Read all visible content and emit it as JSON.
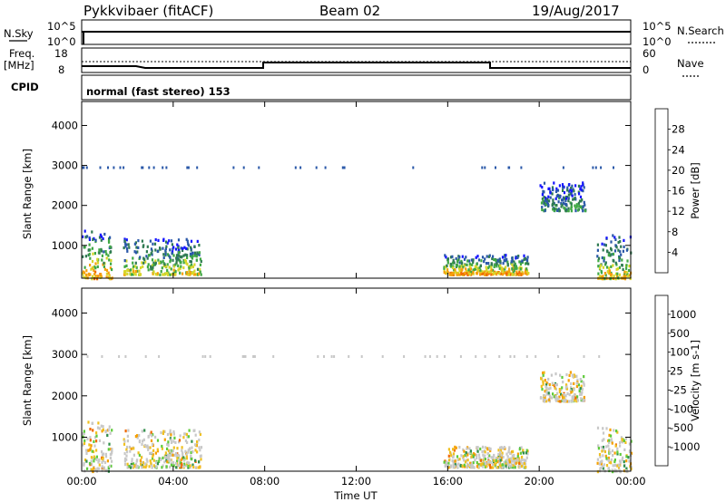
{
  "header": {
    "title": "Pykkvibaer (fitACF)",
    "beam": "Beam 02",
    "date": "19/Aug/2017"
  },
  "status": {
    "nsky_label": "N.Sky",
    "nsky_ticks": [
      "10^5",
      "10^0"
    ],
    "nsearch_label": "N.Search",
    "nsearch_ticks": [
      "10^5",
      "10^0"
    ],
    "freq_label_1": "Freq.",
    "freq_label_2": "[MHz]",
    "freq_ticks": [
      "18",
      "8"
    ],
    "nave_label": "Nave",
    "nave_ticks": [
      "60",
      "0"
    ],
    "cpid_label": "CPID",
    "cpid_text": "normal (fast stereo) 153"
  },
  "chart_data": [
    {
      "type": "heatmap",
      "name": "power-panel",
      "ylabel": "Slant Range [km]",
      "yticks": [
        1000,
        2000,
        3000,
        4000
      ],
      "ylim": [
        180,
        4600
      ],
      "xlim": [
        0,
        24
      ],
      "xticks": [
        "00:00",
        "04:00",
        "08:00",
        "12:00",
        "16:00",
        "20:00",
        "00:00"
      ],
      "xlabel": "Time UT",
      "colorbar": {
        "label": "Power [dB]",
        "ticks": [
          "4",
          "8",
          "12",
          "16",
          "20",
          "24",
          "28"
        ],
        "colors": [
          "#1414ff",
          "#2a58a8",
          "#2f7a52",
          "#3fa844",
          "#d7d72a",
          "#f5a00a",
          "#f06a00",
          "#ff1a00"
        ]
      },
      "regions": [
        {
          "t0": 0.0,
          "t1": 1.3,
          "r0": 200,
          "r1": 1400,
          "level": 5
        },
        {
          "t0": 1.8,
          "t1": 5.2,
          "r0": 300,
          "r1": 1200,
          "level": 4
        },
        {
          "t0": 15.8,
          "t1": 19.5,
          "r0": 300,
          "r1": 800,
          "level": 5
        },
        {
          "t0": 20.0,
          "t1": 22.0,
          "r0": 1900,
          "r1": 2600,
          "level": 2
        },
        {
          "t0": 22.5,
          "t1": 24.0,
          "r0": 200,
          "r1": 1300,
          "level": 4
        }
      ]
    },
    {
      "type": "heatmap",
      "name": "velocity-panel",
      "ylabel": "Slant Range [km]",
      "yticks": [
        1000,
        2000,
        3000,
        4000
      ],
      "ylim": [
        180,
        4600
      ],
      "xlim": [
        0,
        24
      ],
      "xticks": [
        "00:00",
        "04:00",
        "08:00",
        "12:00",
        "16:00",
        "20:00",
        "00:00"
      ],
      "xlabel": "Time UT",
      "colorbar": {
        "label": "Velocity [m s-1]",
        "ticks": [
          "1000",
          "500",
          "100",
          "25",
          "-25",
          "-100",
          "-500",
          "-1000"
        ],
        "colors": [
          "#1c3fd0",
          "#2a7a9a",
          "#2f8f4a",
          "#5ecb3a",
          "#c8c8c8",
          "#f0c020",
          "#f5a000",
          "#f06a00",
          "#ff1a00"
        ]
      },
      "regions": [
        {
          "t0": 0.0,
          "t1": 1.3,
          "r0": 200,
          "r1": 1400,
          "level": 4
        },
        {
          "t0": 1.8,
          "t1": 5.2,
          "r0": 300,
          "r1": 1200,
          "level": 4
        },
        {
          "t0": 15.8,
          "t1": 19.5,
          "r0": 300,
          "r1": 800,
          "level": 5
        },
        {
          "t0": 20.0,
          "t1": 22.0,
          "r0": 1900,
          "r1": 2600,
          "level": 4
        },
        {
          "t0": 22.5,
          "t1": 24.0,
          "r0": 200,
          "r1": 1300,
          "level": 4
        }
      ]
    }
  ]
}
